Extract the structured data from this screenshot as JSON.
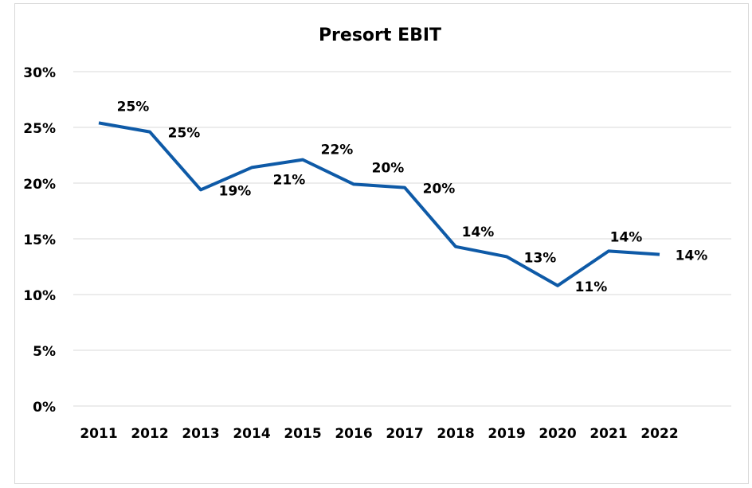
{
  "chart_data": {
    "type": "line",
    "title": "Presort EBIT",
    "categories": [
      "2011",
      "2012",
      "2013",
      "2014",
      "2015",
      "2016",
      "2017",
      "2018",
      "2019",
      "2020",
      "2021",
      "2022"
    ],
    "series": [
      {
        "name": "Presort EBIT",
        "color": "#0e5aa7",
        "values": [
          25.4,
          24.6,
          19.4,
          21.4,
          22.1,
          19.9,
          19.6,
          14.3,
          13.4,
          10.8,
          13.9,
          13.6
        ],
        "value_labels": [
          "25%",
          "25%",
          "19%",
          "21%",
          "22%",
          "20%",
          "20%",
          "14%",
          "13%",
          "11%",
          "14%",
          "14%"
        ]
      }
    ],
    "ylim": [
      0,
      30
    ],
    "yticks": [
      {
        "value": 0,
        "label": "0%"
      },
      {
        "value": 5,
        "label": "5%"
      },
      {
        "value": 10,
        "label": "10%"
      },
      {
        "value": 15,
        "label": "15%"
      },
      {
        "value": 20,
        "label": "20%"
      },
      {
        "value": 25,
        "label": "25%"
      },
      {
        "value": 30,
        "label": "30%"
      }
    ],
    "grid": true
  }
}
